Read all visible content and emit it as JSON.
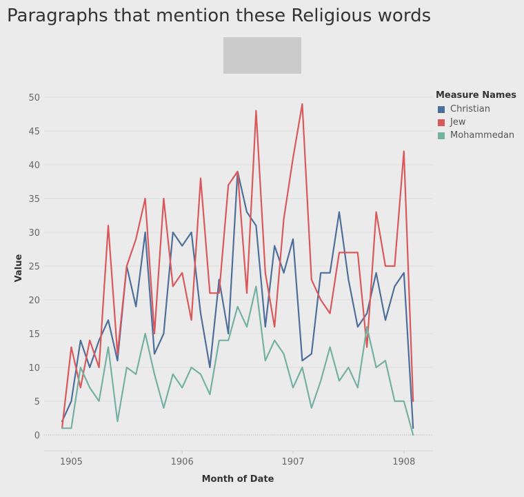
{
  "title": "Paragraphs that mention these Religious words",
  "legend": {
    "title": "Measure Names",
    "items": [
      {
        "label": "Christian",
        "color": "#4e6e9a"
      },
      {
        "label": "Jew",
        "color": "#d8585b"
      },
      {
        "label": "Mohammedan",
        "color": "#75b1a0"
      }
    ]
  },
  "chart_data": {
    "type": "line",
    "xlabel": "Month of Date",
    "ylabel": "Value",
    "ylim": [
      0,
      50
    ],
    "yticks": [
      "0",
      "5",
      "10",
      "15",
      "20",
      "25",
      "30",
      "35",
      "40",
      "45",
      "50"
    ],
    "xticks": [
      {
        "label": "1905",
        "month_index": 1
      },
      {
        "label": "1906",
        "month_index": 13
      },
      {
        "label": "1907",
        "month_index": 25
      },
      {
        "label": "1908",
        "month_index": 37
      }
    ],
    "grid": "horizontal",
    "legend_position": "right",
    "x": [
      "1904-12",
      "1905-01",
      "1905-02",
      "1905-03",
      "1905-04",
      "1905-05",
      "1905-06",
      "1905-07",
      "1905-08",
      "1905-09",
      "1905-10",
      "1905-11",
      "1905-12",
      "1906-01",
      "1906-02",
      "1906-03",
      "1906-04",
      "1906-05",
      "1906-06",
      "1906-07",
      "1906-08",
      "1906-09",
      "1906-10",
      "1906-11",
      "1906-12",
      "1907-01",
      "1907-02",
      "1907-03",
      "1907-04",
      "1907-05",
      "1907-06",
      "1907-07",
      "1907-08",
      "1907-09",
      "1907-10",
      "1907-11",
      "1907-12",
      "1908-01",
      "1908-02"
    ],
    "series": [
      {
        "name": "Christian",
        "color": "#4e6e9a",
        "values": [
          2,
          5,
          14,
          10,
          14,
          17,
          11,
          25,
          19,
          30,
          12,
          15,
          30,
          28,
          30,
          18,
          10,
          23,
          15,
          39,
          33,
          31,
          16,
          28,
          24,
          29,
          11,
          12,
          24,
          24,
          33,
          23,
          16,
          18,
          24,
          17,
          22,
          24,
          1
        ]
      },
      {
        "name": "Jew",
        "color": "#d8585b",
        "values": [
          1,
          13,
          7,
          14,
          10,
          31,
          12,
          25,
          29,
          35,
          15,
          35,
          22,
          24,
          17,
          38,
          21,
          21,
          37,
          39,
          21,
          48,
          24,
          16,
          32,
          41,
          49,
          23,
          20,
          18,
          27,
          27,
          27,
          13,
          33,
          25,
          25,
          42,
          5
        ]
      },
      {
        "name": "Mohammedan",
        "color": "#75b1a0",
        "values": [
          1,
          1,
          10,
          7,
          5,
          13,
          2,
          10,
          9,
          15,
          9,
          4,
          9,
          7,
          10,
          9,
          6,
          14,
          14,
          19,
          16,
          22,
          11,
          14,
          12,
          7,
          10,
          4,
          8,
          13,
          8,
          10,
          7,
          16,
          10,
          11,
          5,
          5,
          0
        ]
      }
    ]
  }
}
